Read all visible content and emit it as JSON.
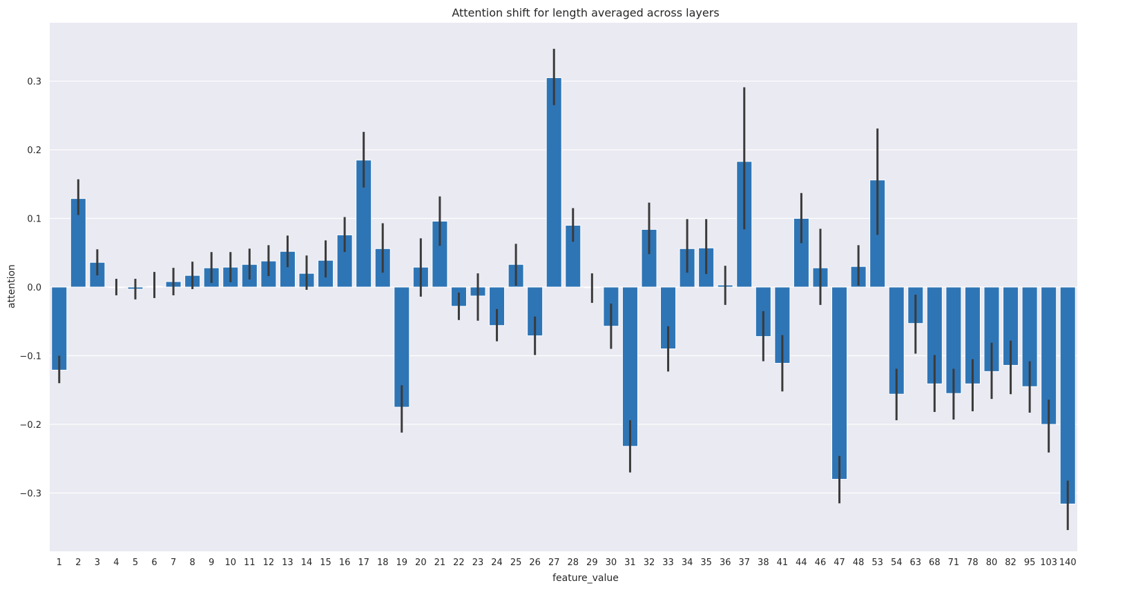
{
  "chart_data": {
    "type": "bar",
    "title": "Attention shift for length averaged across layers",
    "xlabel": "feature_value",
    "ylabel": "attention",
    "ylim": [
      -0.385,
      0.385
    ],
    "yticks": [
      -0.3,
      -0.2,
      -0.1,
      0.0,
      0.1,
      0.2,
      0.3
    ],
    "ytick_labels": [
      "−0.3",
      "−0.2",
      "−0.1",
      "0.0",
      "0.1",
      "0.2",
      "0.3"
    ],
    "grid": true,
    "legend": "none",
    "colors": {
      "background": "#EAEAF2",
      "bar": "#2E75B6",
      "error": "#3A3A3A",
      "grid": "#FFFFFF"
    },
    "categories": [
      "1",
      "2",
      "3",
      "4",
      "5",
      "6",
      "7",
      "8",
      "9",
      "10",
      "11",
      "12",
      "13",
      "14",
      "15",
      "16",
      "17",
      "18",
      "19",
      "20",
      "21",
      "22",
      "23",
      "24",
      "25",
      "26",
      "27",
      "28",
      "29",
      "30",
      "31",
      "32",
      "33",
      "34",
      "35",
      "36",
      "37",
      "38",
      "41",
      "44",
      "46",
      "47",
      "48",
      "53",
      "54",
      "63",
      "68",
      "71",
      "78",
      "80",
      "82",
      "95",
      "103",
      "140"
    ],
    "values": [
      -0.121,
      0.129,
      0.036,
      0.0,
      -0.003,
      0.001,
      0.008,
      0.017,
      0.028,
      0.029,
      0.033,
      0.038,
      0.052,
      0.02,
      0.039,
      0.076,
      0.185,
      0.056,
      -0.175,
      0.029,
      0.096,
      -0.028,
      -0.013,
      -0.056,
      0.033,
      -0.071,
      0.305,
      0.09,
      -0.001,
      -0.057,
      -0.232,
      0.084,
      -0.09,
      0.056,
      0.057,
      0.003,
      0.183,
      -0.072,
      -0.111,
      0.1,
      0.028,
      -0.28,
      0.03,
      0.156,
      -0.156,
      -0.053,
      -0.141,
      -0.155,
      -0.141,
      -0.123,
      -0.114,
      -0.145,
      -0.2,
      -0.316
    ],
    "ci_low": [
      -0.14,
      0.105,
      0.017,
      -0.012,
      -0.018,
      -0.016,
      -0.012,
      -0.003,
      0.006,
      0.007,
      0.011,
      0.016,
      0.029,
      -0.004,
      0.014,
      0.051,
      0.145,
      0.021,
      -0.212,
      -0.014,
      0.06,
      -0.048,
      -0.049,
      -0.079,
      0.002,
      -0.099,
      0.265,
      0.066,
      -0.023,
      -0.09,
      -0.27,
      0.048,
      -0.123,
      0.021,
      0.019,
      -0.026,
      0.084,
      -0.108,
      -0.152,
      0.064,
      -0.026,
      -0.315,
      0.002,
      0.076,
      -0.194,
      -0.097,
      -0.182,
      -0.193,
      -0.181,
      -0.163,
      -0.156,
      -0.183,
      -0.241,
      -0.354
    ],
    "ci_high": [
      -0.1,
      0.157,
      0.055,
      0.012,
      0.012,
      0.022,
      0.028,
      0.037,
      0.051,
      0.051,
      0.056,
      0.061,
      0.075,
      0.046,
      0.068,
      0.102,
      0.226,
      0.093,
      -0.143,
      0.071,
      0.132,
      -0.008,
      0.02,
      -0.032,
      0.063,
      -0.043,
      0.347,
      0.115,
      0.02,
      -0.024,
      -0.194,
      0.123,
      -0.057,
      0.099,
      0.099,
      0.031,
      0.291,
      -0.035,
      -0.07,
      0.137,
      0.085,
      -0.246,
      0.061,
      0.231,
      -0.119,
      -0.011,
      -0.099,
      -0.119,
      -0.105,
      -0.081,
      -0.078,
      -0.108,
      -0.164,
      -0.282
    ]
  }
}
